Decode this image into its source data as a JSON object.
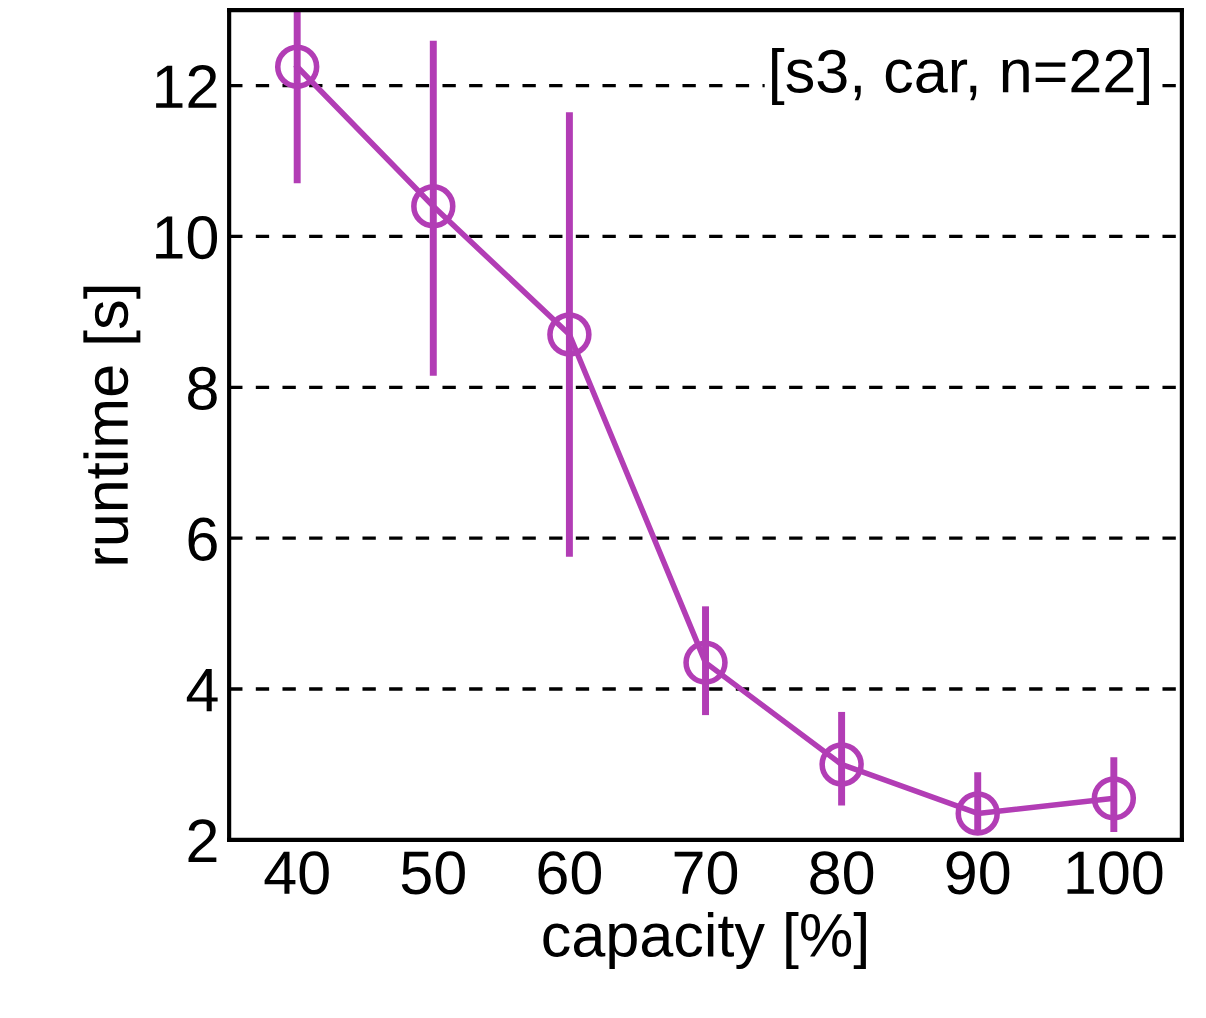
{
  "chart_data": {
    "type": "line",
    "xlabel": "capacity [%]",
    "ylabel": "runtime [s]",
    "x": [
      40,
      50,
      60,
      70,
      80,
      90,
      100
    ],
    "series": [
      {
        "color": "#b23db5",
        "values": [
          12.25,
          10.4,
          8.7,
          4.35,
          3.0,
          2.35,
          2.55
        ],
        "errors": [
          [
            10.75,
            13.0
          ],
          [
            8.2,
            12.55
          ],
          [
            5.8,
            11.6
          ],
          [
            3.7,
            5.05
          ],
          [
            2.5,
            3.65
          ],
          [
            2.15,
            2.85
          ],
          [
            2.15,
            3.05
          ]
        ]
      }
    ],
    "annotations": [
      "[s3, car, n=22]"
    ],
    "xlim": [
      35,
      105
    ],
    "xticks": [
      40,
      50,
      60,
      70,
      80,
      90,
      100
    ],
    "ylim": [
      2,
      13
    ],
    "yticks": [
      2,
      4,
      6,
      8,
      10,
      12
    ],
    "grid": "y",
    "marker": "circle",
    "line_style": "solid",
    "legend": false
  }
}
